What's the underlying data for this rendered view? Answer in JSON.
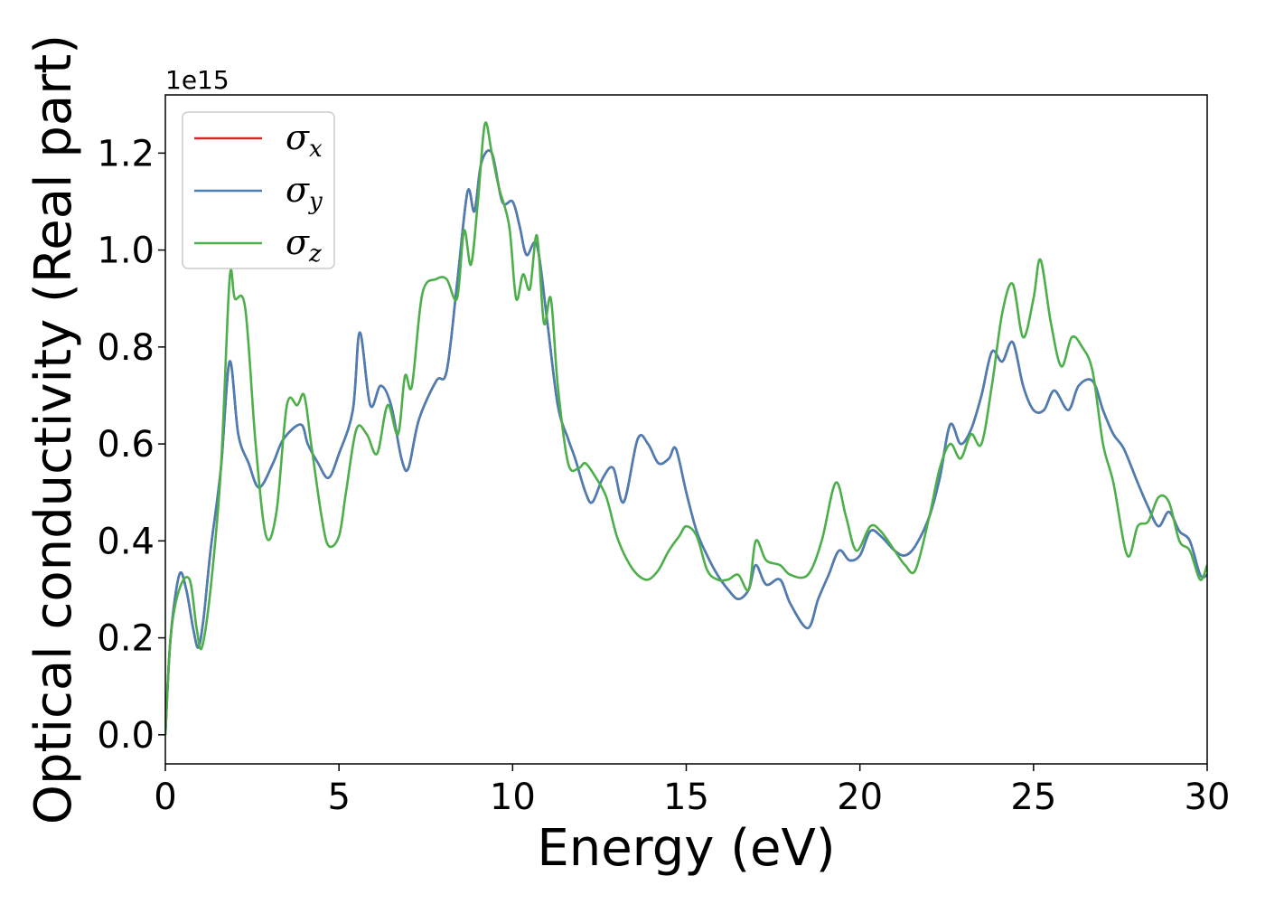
{
  "chart_data": {
    "type": "line",
    "xlabel": "Energy (eV)",
    "ylabel": "Optical conductivity (Real part)",
    "y_offset_label": "1e15",
    "xlim": [
      0,
      30
    ],
    "ylim": [
      -0.06,
      1.32
    ],
    "x_ticks": [
      0,
      5,
      10,
      15,
      20,
      25,
      30
    ],
    "y_ticks": [
      0.0,
      0.2,
      0.4,
      0.6,
      0.8,
      1.0,
      1.2
    ],
    "y_tick_labels": [
      "0.0",
      "0.2",
      "0.4",
      "0.6",
      "0.8",
      "1.0",
      "1.2"
    ],
    "grid": false,
    "legend_position": "top-left",
    "series": [
      {
        "name": "σx",
        "name_base": "σ",
        "name_sub": "x",
        "color": "#d62728",
        "points": [
          [
            0,
            0.0
          ],
          [
            0.15,
            0.2
          ],
          [
            0.4,
            0.33
          ],
          [
            0.6,
            0.3
          ],
          [
            0.8,
            0.22
          ],
          [
            0.95,
            0.18
          ],
          [
            1.1,
            0.24
          ],
          [
            1.3,
            0.38
          ],
          [
            1.6,
            0.55
          ],
          [
            1.85,
            0.77
          ],
          [
            2.1,
            0.62
          ],
          [
            2.4,
            0.56
          ],
          [
            2.7,
            0.51
          ],
          [
            3.1,
            0.56
          ],
          [
            3.4,
            0.61
          ],
          [
            3.9,
            0.64
          ],
          [
            4.1,
            0.6
          ],
          [
            4.4,
            0.56
          ],
          [
            4.7,
            0.53
          ],
          [
            5.0,
            0.58
          ],
          [
            5.4,
            0.67
          ],
          [
            5.6,
            0.83
          ],
          [
            5.9,
            0.68
          ],
          [
            6.2,
            0.72
          ],
          [
            6.5,
            0.68
          ],
          [
            6.8,
            0.57
          ],
          [
            7.0,
            0.55
          ],
          [
            7.3,
            0.65
          ],
          [
            7.8,
            0.73
          ],
          [
            8.1,
            0.75
          ],
          [
            8.4,
            0.93
          ],
          [
            8.7,
            1.12
          ],
          [
            8.9,
            1.08
          ],
          [
            9.1,
            1.18
          ],
          [
            9.4,
            1.2
          ],
          [
            9.7,
            1.1
          ],
          [
            10.0,
            1.1
          ],
          [
            10.2,
            1.05
          ],
          [
            10.4,
            0.99
          ],
          [
            10.7,
            1.01
          ],
          [
            11.0,
            0.85
          ],
          [
            11.3,
            0.68
          ],
          [
            11.6,
            0.61
          ],
          [
            11.8,
            0.57
          ],
          [
            12.1,
            0.5
          ],
          [
            12.3,
            0.48
          ],
          [
            12.6,
            0.53
          ],
          [
            12.9,
            0.55
          ],
          [
            13.2,
            0.48
          ],
          [
            13.6,
            0.61
          ],
          [
            13.9,
            0.6
          ],
          [
            14.2,
            0.56
          ],
          [
            14.5,
            0.57
          ],
          [
            14.7,
            0.59
          ],
          [
            15.0,
            0.5
          ],
          [
            15.3,
            0.42
          ],
          [
            15.6,
            0.37
          ],
          [
            15.9,
            0.33
          ],
          [
            16.2,
            0.3
          ],
          [
            16.5,
            0.28
          ],
          [
            16.8,
            0.3
          ],
          [
            17.0,
            0.35
          ],
          [
            17.3,
            0.31
          ],
          [
            17.7,
            0.32
          ],
          [
            18.0,
            0.27
          ],
          [
            18.5,
            0.22
          ],
          [
            18.8,
            0.28
          ],
          [
            19.1,
            0.33
          ],
          [
            19.4,
            0.38
          ],
          [
            19.7,
            0.36
          ],
          [
            20.0,
            0.37
          ],
          [
            20.3,
            0.42
          ],
          [
            20.6,
            0.41
          ],
          [
            21.0,
            0.38
          ],
          [
            21.3,
            0.37
          ],
          [
            21.6,
            0.39
          ],
          [
            22.0,
            0.45
          ],
          [
            22.3,
            0.53
          ],
          [
            22.6,
            0.64
          ],
          [
            22.9,
            0.6
          ],
          [
            23.2,
            0.63
          ],
          [
            23.5,
            0.7
          ],
          [
            23.8,
            0.79
          ],
          [
            24.1,
            0.77
          ],
          [
            24.4,
            0.81
          ],
          [
            24.7,
            0.72
          ],
          [
            25.0,
            0.67
          ],
          [
            25.3,
            0.67
          ],
          [
            25.6,
            0.71
          ],
          [
            26.0,
            0.67
          ],
          [
            26.3,
            0.72
          ],
          [
            26.7,
            0.73
          ],
          [
            27.0,
            0.67
          ],
          [
            27.3,
            0.62
          ],
          [
            27.6,
            0.59
          ],
          [
            28.0,
            0.52
          ],
          [
            28.3,
            0.47
          ],
          [
            28.6,
            0.43
          ],
          [
            28.9,
            0.46
          ],
          [
            29.2,
            0.42
          ],
          [
            29.5,
            0.4
          ],
          [
            29.8,
            0.33
          ],
          [
            30.0,
            0.33
          ]
        ]
      },
      {
        "name": "σy",
        "name_base": "σ",
        "name_sub": "y",
        "color": "#4a7fb5",
        "points": [
          [
            0,
            0.0
          ],
          [
            0.15,
            0.2
          ],
          [
            0.4,
            0.33
          ],
          [
            0.6,
            0.3
          ],
          [
            0.8,
            0.22
          ],
          [
            0.95,
            0.18
          ],
          [
            1.1,
            0.24
          ],
          [
            1.3,
            0.38
          ],
          [
            1.6,
            0.55
          ],
          [
            1.85,
            0.77
          ],
          [
            2.1,
            0.62
          ],
          [
            2.4,
            0.56
          ],
          [
            2.7,
            0.51
          ],
          [
            3.1,
            0.56
          ],
          [
            3.4,
            0.61
          ],
          [
            3.9,
            0.64
          ],
          [
            4.1,
            0.6
          ],
          [
            4.4,
            0.56
          ],
          [
            4.7,
            0.53
          ],
          [
            5.0,
            0.58
          ],
          [
            5.4,
            0.67
          ],
          [
            5.6,
            0.83
          ],
          [
            5.9,
            0.68
          ],
          [
            6.2,
            0.72
          ],
          [
            6.5,
            0.68
          ],
          [
            6.8,
            0.57
          ],
          [
            7.0,
            0.55
          ],
          [
            7.3,
            0.65
          ],
          [
            7.8,
            0.73
          ],
          [
            8.1,
            0.75
          ],
          [
            8.4,
            0.93
          ],
          [
            8.7,
            1.12
          ],
          [
            8.9,
            1.08
          ],
          [
            9.1,
            1.18
          ],
          [
            9.4,
            1.2
          ],
          [
            9.7,
            1.1
          ],
          [
            10.0,
            1.1
          ],
          [
            10.2,
            1.05
          ],
          [
            10.4,
            0.99
          ],
          [
            10.7,
            1.01
          ],
          [
            11.0,
            0.85
          ],
          [
            11.3,
            0.68
          ],
          [
            11.6,
            0.61
          ],
          [
            11.8,
            0.57
          ],
          [
            12.1,
            0.5
          ],
          [
            12.3,
            0.48
          ],
          [
            12.6,
            0.53
          ],
          [
            12.9,
            0.55
          ],
          [
            13.2,
            0.48
          ],
          [
            13.6,
            0.61
          ],
          [
            13.9,
            0.6
          ],
          [
            14.2,
            0.56
          ],
          [
            14.5,
            0.57
          ],
          [
            14.7,
            0.59
          ],
          [
            15.0,
            0.5
          ],
          [
            15.3,
            0.42
          ],
          [
            15.6,
            0.37
          ],
          [
            15.9,
            0.33
          ],
          [
            16.2,
            0.3
          ],
          [
            16.5,
            0.28
          ],
          [
            16.8,
            0.3
          ],
          [
            17.0,
            0.35
          ],
          [
            17.3,
            0.31
          ],
          [
            17.7,
            0.32
          ],
          [
            18.0,
            0.27
          ],
          [
            18.5,
            0.22
          ],
          [
            18.8,
            0.28
          ],
          [
            19.1,
            0.33
          ],
          [
            19.4,
            0.38
          ],
          [
            19.7,
            0.36
          ],
          [
            20.0,
            0.37
          ],
          [
            20.3,
            0.42
          ],
          [
            20.6,
            0.41
          ],
          [
            21.0,
            0.38
          ],
          [
            21.3,
            0.37
          ],
          [
            21.6,
            0.39
          ],
          [
            22.0,
            0.45
          ],
          [
            22.3,
            0.53
          ],
          [
            22.6,
            0.64
          ],
          [
            22.9,
            0.6
          ],
          [
            23.2,
            0.63
          ],
          [
            23.5,
            0.7
          ],
          [
            23.8,
            0.79
          ],
          [
            24.1,
            0.77
          ],
          [
            24.4,
            0.81
          ],
          [
            24.7,
            0.72
          ],
          [
            25.0,
            0.67
          ],
          [
            25.3,
            0.67
          ],
          [
            25.6,
            0.71
          ],
          [
            26.0,
            0.67
          ],
          [
            26.3,
            0.72
          ],
          [
            26.7,
            0.73
          ],
          [
            27.0,
            0.67
          ],
          [
            27.3,
            0.62
          ],
          [
            27.6,
            0.59
          ],
          [
            28.0,
            0.52
          ],
          [
            28.3,
            0.47
          ],
          [
            28.6,
            0.43
          ],
          [
            28.9,
            0.46
          ],
          [
            29.2,
            0.42
          ],
          [
            29.5,
            0.4
          ],
          [
            29.8,
            0.33
          ],
          [
            30.0,
            0.33
          ]
        ]
      },
      {
        "name": "σz",
        "name_base": "σ",
        "name_sub": "z",
        "color": "#4daf4a",
        "points": [
          [
            0,
            0.0
          ],
          [
            0.15,
            0.2
          ],
          [
            0.4,
            0.3
          ],
          [
            0.7,
            0.32
          ],
          [
            0.9,
            0.22
          ],
          [
            1.05,
            0.18
          ],
          [
            1.3,
            0.3
          ],
          [
            1.6,
            0.55
          ],
          [
            1.85,
            0.94
          ],
          [
            2.0,
            0.9
          ],
          [
            2.3,
            0.88
          ],
          [
            2.6,
            0.6
          ],
          [
            2.9,
            0.41
          ],
          [
            3.2,
            0.46
          ],
          [
            3.5,
            0.68
          ],
          [
            3.8,
            0.68
          ],
          [
            4.0,
            0.7
          ],
          [
            4.2,
            0.6
          ],
          [
            4.5,
            0.45
          ],
          [
            4.7,
            0.39
          ],
          [
            5.0,
            0.41
          ],
          [
            5.2,
            0.5
          ],
          [
            5.5,
            0.63
          ],
          [
            5.8,
            0.62
          ],
          [
            6.1,
            0.58
          ],
          [
            6.4,
            0.68
          ],
          [
            6.7,
            0.62
          ],
          [
            6.9,
            0.74
          ],
          [
            7.1,
            0.72
          ],
          [
            7.4,
            0.91
          ],
          [
            7.8,
            0.94
          ],
          [
            8.1,
            0.94
          ],
          [
            8.4,
            0.9
          ],
          [
            8.6,
            1.04
          ],
          [
            8.8,
            0.97
          ],
          [
            9.0,
            1.1
          ],
          [
            9.2,
            1.26
          ],
          [
            9.4,
            1.2
          ],
          [
            9.6,
            1.13
          ],
          [
            9.9,
            1.05
          ],
          [
            10.1,
            0.9
          ],
          [
            10.3,
            0.95
          ],
          [
            10.5,
            0.92
          ],
          [
            10.7,
            1.03
          ],
          [
            10.9,
            0.85
          ],
          [
            11.1,
            0.9
          ],
          [
            11.3,
            0.72
          ],
          [
            11.6,
            0.56
          ],
          [
            11.9,
            0.55
          ],
          [
            12.1,
            0.56
          ],
          [
            12.4,
            0.53
          ],
          [
            12.7,
            0.49
          ],
          [
            13.0,
            0.41
          ],
          [
            13.3,
            0.36
          ],
          [
            13.6,
            0.33
          ],
          [
            13.9,
            0.32
          ],
          [
            14.2,
            0.34
          ],
          [
            14.5,
            0.38
          ],
          [
            14.8,
            0.41
          ],
          [
            15.0,
            0.43
          ],
          [
            15.3,
            0.41
          ],
          [
            15.6,
            0.34
          ],
          [
            15.9,
            0.32
          ],
          [
            16.2,
            0.32
          ],
          [
            16.5,
            0.33
          ],
          [
            16.8,
            0.3
          ],
          [
            17.0,
            0.4
          ],
          [
            17.3,
            0.36
          ],
          [
            17.7,
            0.35
          ],
          [
            18.0,
            0.33
          ],
          [
            18.5,
            0.33
          ],
          [
            18.9,
            0.4
          ],
          [
            19.3,
            0.52
          ],
          [
            19.6,
            0.45
          ],
          [
            19.9,
            0.38
          ],
          [
            20.3,
            0.43
          ],
          [
            20.6,
            0.42
          ],
          [
            21.0,
            0.38
          ],
          [
            21.3,
            0.35
          ],
          [
            21.6,
            0.34
          ],
          [
            22.0,
            0.45
          ],
          [
            22.3,
            0.55
          ],
          [
            22.6,
            0.6
          ],
          [
            22.9,
            0.57
          ],
          [
            23.2,
            0.62
          ],
          [
            23.5,
            0.6
          ],
          [
            23.8,
            0.72
          ],
          [
            24.1,
            0.87
          ],
          [
            24.4,
            0.93
          ],
          [
            24.7,
            0.82
          ],
          [
            25.0,
            0.9
          ],
          [
            25.2,
            0.98
          ],
          [
            25.5,
            0.85
          ],
          [
            25.8,
            0.76
          ],
          [
            26.1,
            0.82
          ],
          [
            26.4,
            0.8
          ],
          [
            26.7,
            0.75
          ],
          [
            27.0,
            0.6
          ],
          [
            27.3,
            0.52
          ],
          [
            27.7,
            0.37
          ],
          [
            28.0,
            0.43
          ],
          [
            28.3,
            0.44
          ],
          [
            28.6,
            0.49
          ],
          [
            28.9,
            0.48
          ],
          [
            29.2,
            0.4
          ],
          [
            29.5,
            0.38
          ],
          [
            29.8,
            0.32
          ],
          [
            30.0,
            0.35
          ]
        ]
      }
    ]
  }
}
